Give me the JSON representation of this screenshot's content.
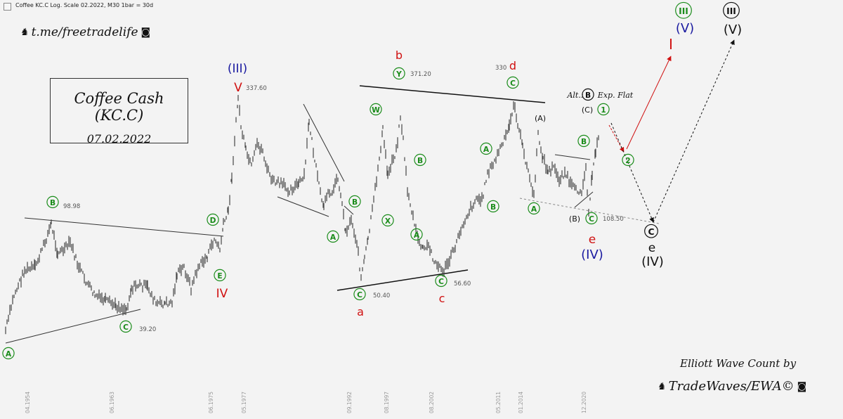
{
  "header": {
    "text": "Coffee KC.C Log. Scale 02.2022, M30     1bar = 30d"
  },
  "handle": {
    "text": "t.me/freetradelife"
  },
  "title": {
    "line1": "Coffee Cash (KC.C)",
    "line2": "07.02.2022"
  },
  "credit": {
    "line1": "Elliott Wave Count by",
    "line2": "TradeWaves/EWA©"
  },
  "colors": {
    "green": "#1a8c1a",
    "red": "#d01010",
    "blue": "#1a1aa0",
    "black": "#111111",
    "price": "#555555"
  },
  "chart_data": {
    "type": "line",
    "scale": "log",
    "x_tick_labels": [
      "04.1954",
      "06.1963",
      "06.1975",
      "05.1977",
      "09.1992",
      "08.1997",
      "08.2002",
      "05.2011",
      "01.2014",
      "12.2020"
    ],
    "price_labels": [
      {
        "text": "98.98"
      },
      {
        "text": "39.20"
      },
      {
        "text": "337.60"
      },
      {
        "text": "371.20"
      },
      {
        "text": "330"
      },
      {
        "text": "50.40"
      },
      {
        "text": "56.60"
      },
      {
        "text": "108.50"
      }
    ],
    "wave_labels": [
      {
        "text": "A",
        "color": "green",
        "circled": true
      },
      {
        "text": "B",
        "color": "green",
        "circled": true
      },
      {
        "text": "C",
        "color": "green",
        "circled": true
      },
      {
        "text": "D",
        "color": "green",
        "circled": true
      },
      {
        "text": "E",
        "color": "green",
        "circled": true
      },
      {
        "text": "IV",
        "color": "red"
      },
      {
        "text": "V",
        "color": "red"
      },
      {
        "text": "(III)",
        "color": "blue"
      },
      {
        "text": "A",
        "color": "green",
        "circled": true
      },
      {
        "text": "B",
        "color": "green",
        "circled": true
      },
      {
        "text": "C",
        "color": "green",
        "circled": true
      },
      {
        "text": "a",
        "color": "red"
      },
      {
        "text": "W",
        "color": "green",
        "circled": true
      },
      {
        "text": "X",
        "color": "green",
        "circled": true
      },
      {
        "text": "Y",
        "color": "green",
        "circled": true
      },
      {
        "text": "b",
        "color": "red"
      },
      {
        "text": "B",
        "color": "green",
        "circled": true
      },
      {
        "text": "A",
        "color": "green",
        "circled": true
      },
      {
        "text": "C",
        "color": "green",
        "circled": true
      },
      {
        "text": "c",
        "color": "red"
      },
      {
        "text": "A",
        "color": "green",
        "circled": true
      },
      {
        "text": "B",
        "color": "green",
        "circled": true
      },
      {
        "text": "C",
        "color": "green",
        "circled": true
      },
      {
        "text": "d",
        "color": "red"
      },
      {
        "text": "(A)",
        "color": "black"
      },
      {
        "text": "A",
        "color": "green",
        "circled": true
      },
      {
        "text": "B",
        "color": "green",
        "circled": true
      },
      {
        "text": "(B)",
        "color": "black"
      },
      {
        "text": "C",
        "color": "green",
        "circled": true
      },
      {
        "text": "e",
        "color": "red"
      },
      {
        "text": "(IV)",
        "color": "blue"
      },
      {
        "text": "Alt.:",
        "color": "black",
        "italic": true
      },
      {
        "text": "B",
        "color": "black",
        "circled": true
      },
      {
        "text": "Exp. Flat",
        "color": "black",
        "italic": true
      },
      {
        "text": "(C)",
        "color": "black"
      },
      {
        "text": "1",
        "color": "green",
        "circled": true
      },
      {
        "text": "2",
        "color": "green",
        "circled": true
      },
      {
        "text": "I",
        "color": "red"
      },
      {
        "text": "III",
        "color": "green",
        "circled": true
      },
      {
        "text": "(V)",
        "color": "blue"
      },
      {
        "text": "III",
        "color": "black",
        "circled": true
      },
      {
        "text": "(V)",
        "color": "black"
      },
      {
        "text": "C",
        "color": "black",
        "circled": true
      },
      {
        "text": "e",
        "color": "black"
      },
      {
        "text": "(IV)",
        "color": "black"
      }
    ]
  }
}
